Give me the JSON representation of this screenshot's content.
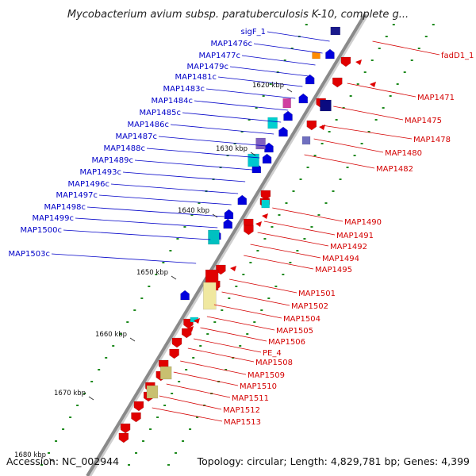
{
  "title": "Mycobacterium avium subsp. paratuberculosis K-10, complete g...",
  "footer": {
    "accession": "Accession: NC_002944",
    "topology": "Topology: circular; Length: 4,829,781 bp; Genes: 4,399"
  },
  "kbp_ticks": [
    {
      "label": "1620 kbp",
      "kbp": 1620
    },
    {
      "label": "1630 kbp",
      "kbp": 1630
    },
    {
      "label": "1640 kbp",
      "kbp": 1640
    },
    {
      "label": "1650 kbp",
      "kbp": 1650
    },
    {
      "label": "1660 kbp",
      "kbp": 1660
    },
    {
      "label": "1670 kbp",
      "kbp": 1670
    },
    {
      "label": "1680 kbp",
      "kbp": 1680
    }
  ],
  "left_genes": [
    "sigF_1",
    "MAP1476c",
    "MAP1477c",
    "MAP1479c",
    "MAP1481c",
    "MAP1483c",
    "MAP1484c",
    "MAP1485c",
    "MAP1486c",
    "MAP1487c",
    "MAP1488c",
    "MAP1489c",
    "MAP1493c",
    "MAP1496c",
    "MAP1497c",
    "MAP1498c",
    "MAP1499c",
    "MAP1500c",
    "MAP1503c"
  ],
  "right_genes": [
    "fadD1_1",
    "MAP1471",
    "MAP1475",
    "MAP1478",
    "MAP1480",
    "MAP1482",
    "MAP1490",
    "MAP1491",
    "MAP1492",
    "MAP1494",
    "MAP1495",
    "MAP1501",
    "MAP1502",
    "MAP1504",
    "MAP1505",
    "MAP1506",
    "PE_4",
    "MAP1508",
    "MAP1509",
    "MAP1510",
    "MAP1511",
    "MAP1512",
    "MAP1513"
  ],
  "colors": {
    "forward_cds": "#e00000",
    "reverse_cds": "#0000dd",
    "backbone": "#8a8a8a",
    "gc_dots": "#1e8a1e",
    "left_label": "#0000c8",
    "right_label": "#d40000"
  }
}
